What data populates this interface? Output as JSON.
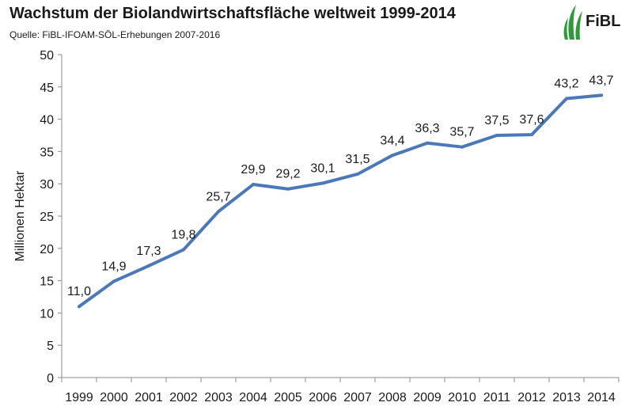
{
  "header": {
    "title": "Wachstum der Biolandwirtschaftsfläche weltweit 1999-2014",
    "subtitle": "Quelle: FiBL-IFOAM-SÖL-Erhebungen 2007-2016",
    "logo_text": "FiBL"
  },
  "colors": {
    "line": "#4a78b8",
    "axis": "#8c8c8c",
    "logo_green": "#2e9a3a"
  },
  "chart_data": {
    "type": "line",
    "title": "Wachstum der Biolandwirtschaftsfläche weltweit 1999-2014",
    "subtitle": "Quelle: FiBL-IFOAM-SÖL-Erhebungen 2007-2016",
    "xlabel": "",
    "ylabel": "Millionen Hektar",
    "ylim": [
      0,
      50
    ],
    "yticks": [
      0,
      5,
      10,
      15,
      20,
      25,
      30,
      35,
      40,
      45,
      50
    ],
    "grid": false,
    "categories": [
      "1999",
      "2000",
      "2001",
      "2002",
      "2003",
      "2004",
      "2005",
      "2006",
      "2007",
      "2008",
      "2009",
      "2010",
      "2011",
      "2012",
      "2013",
      "2014"
    ],
    "series": [
      {
        "values": [
          11.0,
          14.9,
          17.3,
          19.8,
          25.7,
          29.9,
          29.2,
          30.1,
          31.5,
          34.4,
          36.3,
          35.7,
          37.5,
          37.6,
          43.2,
          43.7
        ],
        "labels": [
          "11,0",
          "14,9",
          "17,3",
          "19,8",
          "25,7",
          "29,9",
          "29,2",
          "30,1",
          "31,5",
          "34,4",
          "36,3",
          "35,7",
          "37,5",
          "37,6",
          "43,2",
          "43,7"
        ]
      }
    ]
  }
}
